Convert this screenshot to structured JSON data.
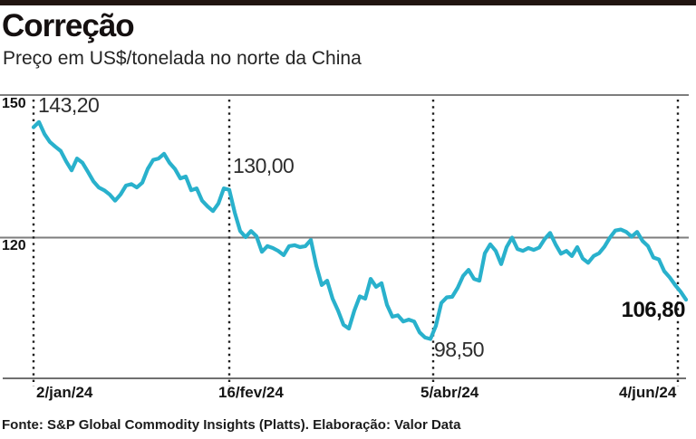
{
  "chart_data": {
    "type": "line",
    "title": "Correção",
    "subtitle": "Preço em US$/tonelada no norte da China",
    "source": "Fonte: S&P Global Commodity Insights (Platts). Elaboração: Valor Data",
    "unit": "US$/tonelada",
    "grid": "horizontal",
    "legend": "none",
    "ylim": [
      90,
      152
    ],
    "y_ticks": [
      "150",
      "120"
    ],
    "y_gridline_values": [
      150,
      120
    ],
    "x_ticks": [
      "2/jan/24",
      "16/fev/24",
      "5/abr/24",
      "4/jun/24"
    ],
    "tick_indices": [
      0,
      36,
      73.5,
      118.5
    ],
    "values": [
      143.2,
      144.3,
      141.8,
      140.1,
      139.1,
      138.2,
      136.0,
      134.1,
      136.6,
      135.7,
      133.8,
      131.8,
      130.5,
      129.9,
      129.0,
      127.7,
      129.0,
      130.9,
      131.2,
      130.5,
      131.5,
      134.4,
      136.3,
      136.6,
      137.6,
      135.7,
      134.4,
      132.4,
      132.8,
      129.9,
      130.3,
      127.7,
      126.5,
      125.5,
      127.1,
      130.3,
      130.0,
      125.2,
      121.3,
      120.0,
      121.3,
      120.2,
      116.9,
      118.1,
      117.7,
      117.1,
      116.2,
      118.1,
      118.3,
      117.9,
      118.1,
      119.4,
      114.0,
      109.9,
      110.8,
      107.0,
      104.5,
      101.5,
      100.7,
      104.5,
      107.5,
      107.0,
      111.2,
      109.5,
      110.3,
      105.7,
      103.2,
      103.5,
      102.2,
      102.6,
      102.2,
      99.9,
      98.8,
      98.5,
      101.3,
      106.1,
      107.3,
      107.4,
      109.3,
      111.8,
      113.1,
      111.2,
      110.8,
      116.6,
      118.5,
      117.1,
      114.3,
      117.9,
      119.9,
      117.5,
      117.1,
      117.7,
      117.3,
      117.8,
      119.6,
      120.9,
      118.5,
      116.5,
      117.1,
      116.0,
      117.9,
      115.5,
      114.6,
      116.0,
      116.6,
      118.0,
      119.9,
      121.4,
      121.6,
      121.1,
      120.1,
      121.1,
      119.2,
      118.1,
      115.7,
      115.3,
      112.8,
      111.5,
      109.9,
      108.5,
      106.8
    ],
    "annotations": [
      {
        "label": "143,20",
        "value": 143.2,
        "date": "2/jan/24"
      },
      {
        "label": "130,00",
        "value": 130.0,
        "date": "16/fev/24"
      },
      {
        "label": "98,50",
        "value": 98.5,
        "date": "5/abr/24"
      },
      {
        "label": "106,80",
        "value": 106.8,
        "date": "4/jun/24",
        "emphasis": "bold"
      }
    ],
    "colors": {
      "line": "#29b1cc",
      "top_bar": "#211511",
      "grid": "#7d7d7d",
      "text": "#1a1a1a"
    }
  }
}
